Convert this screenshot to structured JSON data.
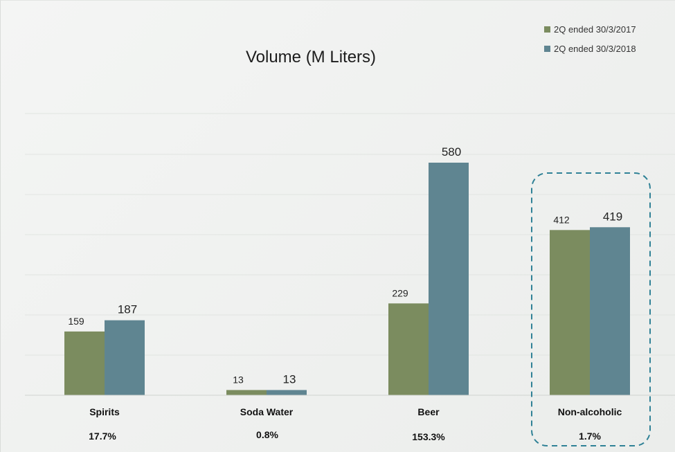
{
  "chart_data": {
    "type": "bar",
    "title": "Volume (M Liters)",
    "xlabel": "",
    "ylabel": "",
    "categories": [
      "Spirits",
      "Soda Water",
      "Beer",
      "Non-alcoholic"
    ],
    "growth": [
      "17.7%",
      "0.8%",
      "153.3%",
      "1.7%"
    ],
    "series": [
      {
        "name": "2Q ended 30/3/2017",
        "color": "#7b8c5f",
        "values": [
          159,
          13,
          229,
          412
        ]
      },
      {
        "name": "2Q ended 30/3/2018",
        "color": "#5f8591",
        "values": [
          187,
          13,
          580,
          419
        ]
      }
    ],
    "ylim": [
      0,
      580
    ],
    "grid": true,
    "legend_position": "top-right",
    "highlight": {
      "category": "Non-alcoholic",
      "style": "dashed-box",
      "color": "#2f8196"
    }
  }
}
